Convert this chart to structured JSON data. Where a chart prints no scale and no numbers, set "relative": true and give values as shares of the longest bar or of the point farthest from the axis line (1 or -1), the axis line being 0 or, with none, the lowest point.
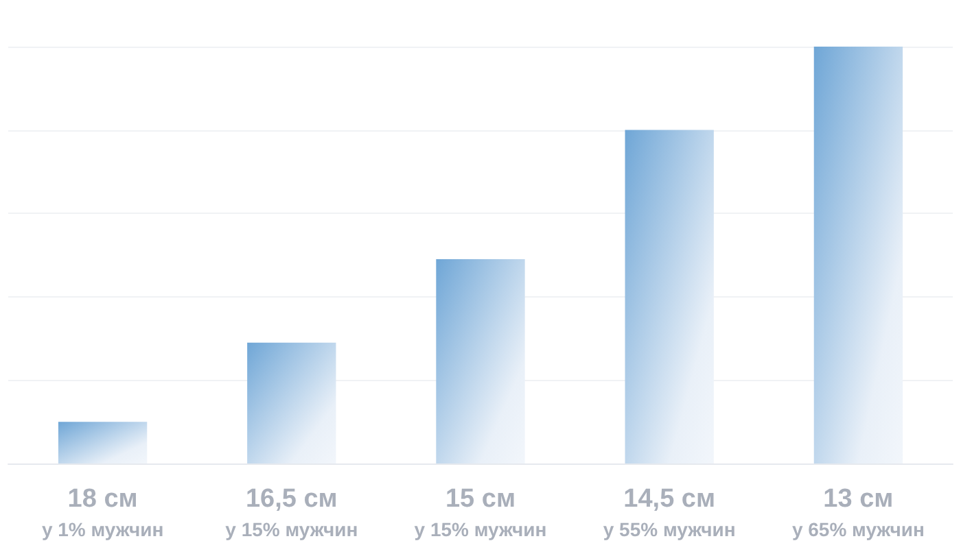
{
  "chart_data": {
    "type": "bar",
    "relative": true,
    "grid": true,
    "categories": [
      "18 см\nу 1% мужчин",
      "16,5 см\nу 15% мужчин",
      "15 см\nу 15% мужчин",
      "14,5 см\nу 55% мужчин",
      "13 см\nу 65% мужчин"
    ],
    "color": "#6fa6d6",
    "values": [
      0.1,
      0.29,
      0.49,
      0.8,
      1
    ]
  }
}
